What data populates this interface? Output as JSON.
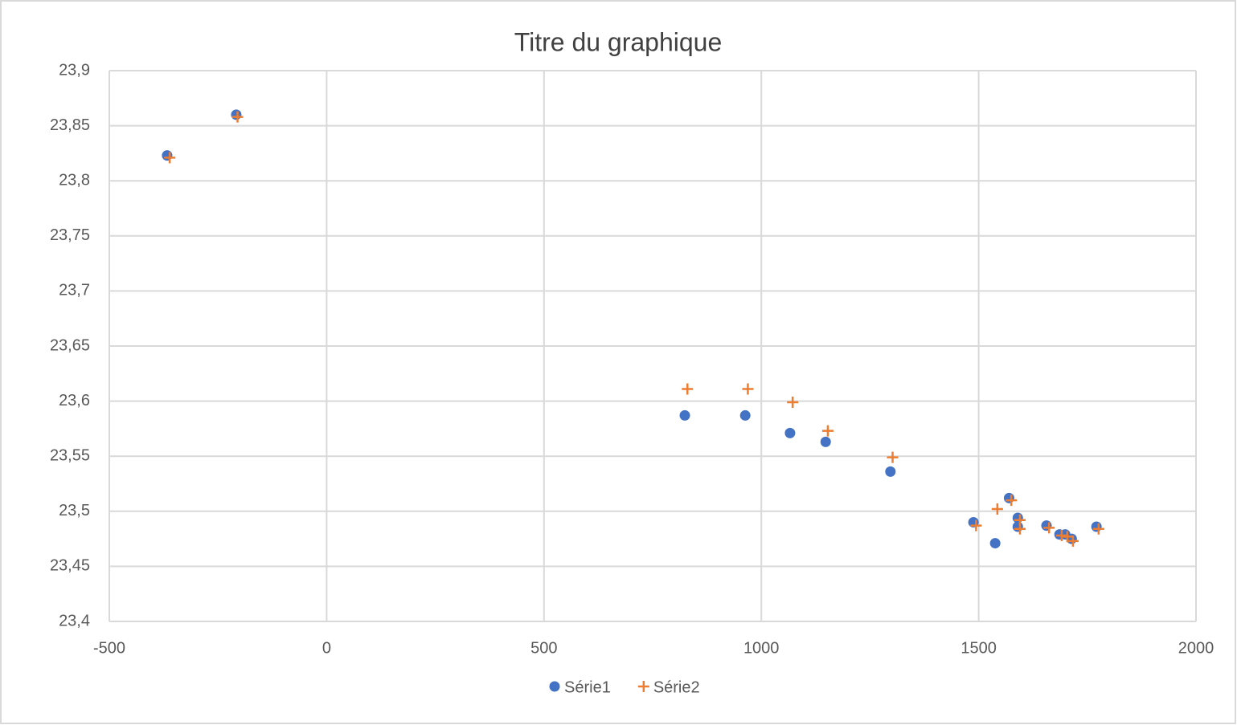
{
  "chart_data": {
    "type": "scatter",
    "title": "Titre du graphique",
    "xlim": [
      -500,
      2000
    ],
    "xticks": [
      -500,
      0,
      500,
      1000,
      1500,
      2000
    ],
    "ylim": [
      23.4,
      23.9
    ],
    "yticks": [
      {
        "value": 23.4,
        "label": "23,4"
      },
      {
        "value": 23.45,
        "label": "23,45"
      },
      {
        "value": 23.5,
        "label": "23,5"
      },
      {
        "value": 23.55,
        "label": "23,55"
      },
      {
        "value": 23.6,
        "label": "23,6"
      },
      {
        "value": 23.65,
        "label": "23,65"
      },
      {
        "value": 23.7,
        "label": "23,7"
      },
      {
        "value": 23.75,
        "label": "23,75"
      },
      {
        "value": 23.8,
        "label": "23,8"
      },
      {
        "value": 23.85,
        "label": "23,85"
      },
      {
        "value": 23.9,
        "label": "23,9"
      }
    ],
    "grid": true,
    "legend": "bottom",
    "series": [
      {
        "name": "Série1",
        "color": "#4472c4",
        "marker": "circle",
        "x": [
          -367,
          -208,
          824,
          963,
          1066,
          1148,
          1297,
          1488,
          1538,
          1570,
          1590,
          1590,
          1656,
          1686,
          1699,
          1714,
          1771
        ],
        "values": [
          23.823,
          23.86,
          23.587,
          23.587,
          23.571,
          23.563,
          23.536,
          23.49,
          23.471,
          23.512,
          23.494,
          23.486,
          23.487,
          23.479,
          23.479,
          23.475,
          23.486
        ]
      },
      {
        "name": "Série2",
        "color": "#ed7d31",
        "marker": "plus",
        "x": [
          -361,
          -205,
          830,
          969,
          1072,
          1153,
          1302,
          1494,
          1543,
          1575,
          1595,
          1595,
          1662,
          1691,
          1704,
          1717,
          1776
        ],
        "values": [
          23.821,
          23.858,
          23.611,
          23.611,
          23.599,
          23.573,
          23.549,
          23.487,
          23.502,
          23.51,
          23.492,
          23.484,
          23.485,
          23.478,
          23.477,
          23.473,
          23.484
        ]
      }
    ]
  }
}
